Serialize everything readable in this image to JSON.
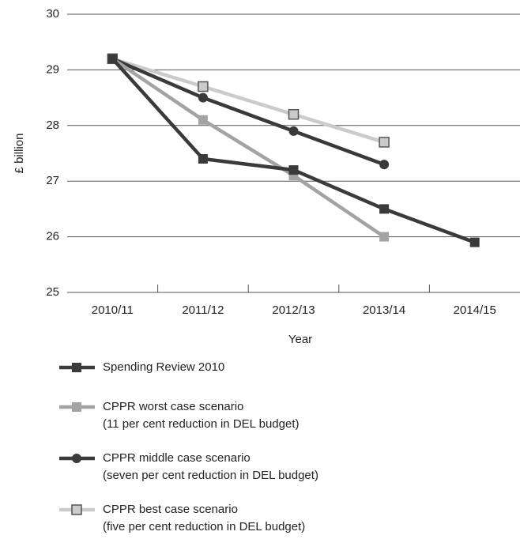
{
  "chart_data": {
    "type": "line",
    "categories": [
      "2010/11",
      "2011/12",
      "2012/13",
      "2013/14",
      "2014/15"
    ],
    "x_label": "Year",
    "y_label": "£ billion",
    "ylim": [
      25,
      30
    ],
    "yticks": [
      25,
      26,
      27,
      28,
      29,
      30
    ],
    "grid": true,
    "series": [
      {
        "name": "Spending Review 2010",
        "color": "#3a3a3a",
        "marker": "square",
        "values": [
          29.2,
          27.4,
          27.2,
          26.5,
          25.9
        ]
      },
      {
        "name": "CPPR worst case scenario",
        "description": "(11 per cent reduction in DEL budget)",
        "color": "#a3a3a3",
        "marker": "square",
        "values": [
          29.2,
          28.1,
          27.1,
          26.0,
          null
        ]
      },
      {
        "name": "CPPR middle case scenario",
        "description": "(seven per cent reduction in DEL budget)",
        "color": "#3a3a3a",
        "marker": "circle",
        "values": [
          29.2,
          28.5,
          27.9,
          27.3,
          null
        ]
      },
      {
        "name": "CPPR best case scenario",
        "description": "(five per cent reduction in DEL budget)",
        "color": "#cbcbcb",
        "marker": "outlined-square",
        "values": [
          29.2,
          28.7,
          28.2,
          27.7,
          null
        ]
      }
    ]
  }
}
